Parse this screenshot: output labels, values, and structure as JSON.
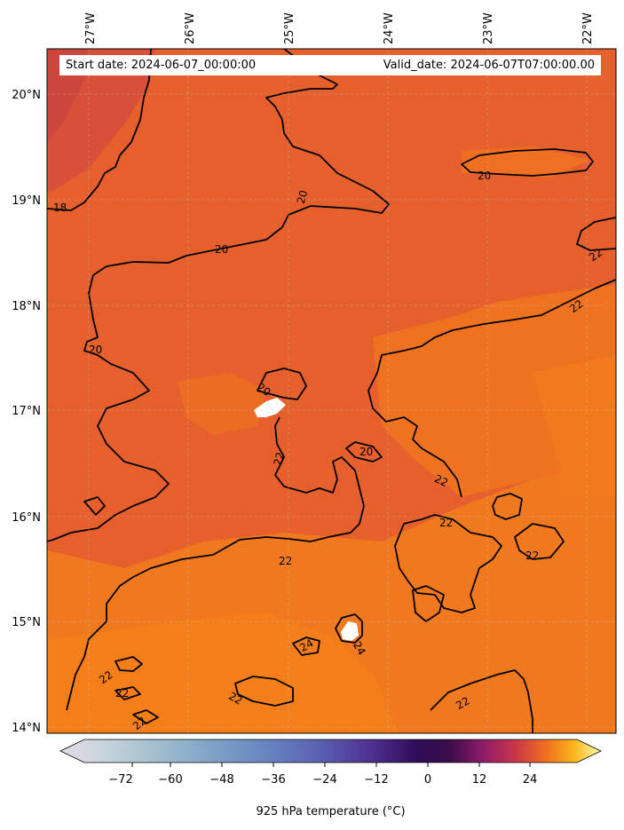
{
  "header": {
    "start_date": "Start date: 2024-06-07_00:00:00",
    "valid_date": "Valid_date: 2024-06-07T07:00:00.00"
  },
  "axes": {
    "lon_labels": [
      "27°W",
      "26°W",
      "25°W",
      "24°W",
      "23°W",
      "22°W"
    ],
    "lat_labels": [
      "20°N",
      "19°N",
      "18°N",
      "17°N",
      "16°N",
      "15°N",
      "14°N"
    ]
  },
  "contour_labels": [
    "20",
    "18",
    "20",
    "20",
    "20",
    "22",
    "20",
    "20",
    "22",
    "22",
    "22",
    "22",
    "22",
    "22",
    "24",
    "24",
    "22",
    "22",
    "22",
    "22",
    "22"
  ],
  "colorbar": {
    "ticks": [
      "−72",
      "−60",
      "−48",
      "−36",
      "−24",
      "−12",
      "0",
      "12",
      "24"
    ],
    "title": "925 hPa temperature (°C)",
    "colors": [
      "#e3dbe6",
      "#b9cdd4",
      "#87adc9",
      "#6a8ec2",
      "#5a6bb8",
      "#5a3d9a",
      "#3a1170",
      "#2b0b48",
      "#7a1a6e",
      "#c1304e",
      "#ee6a22",
      "#fba818",
      "#f8e860",
      "#fcfdb0"
    ]
  },
  "map_colors": {
    "base": "#e9622a",
    "warm": "#f0781e",
    "cool": "#cf4a3e",
    "land": "#ffffff"
  }
}
